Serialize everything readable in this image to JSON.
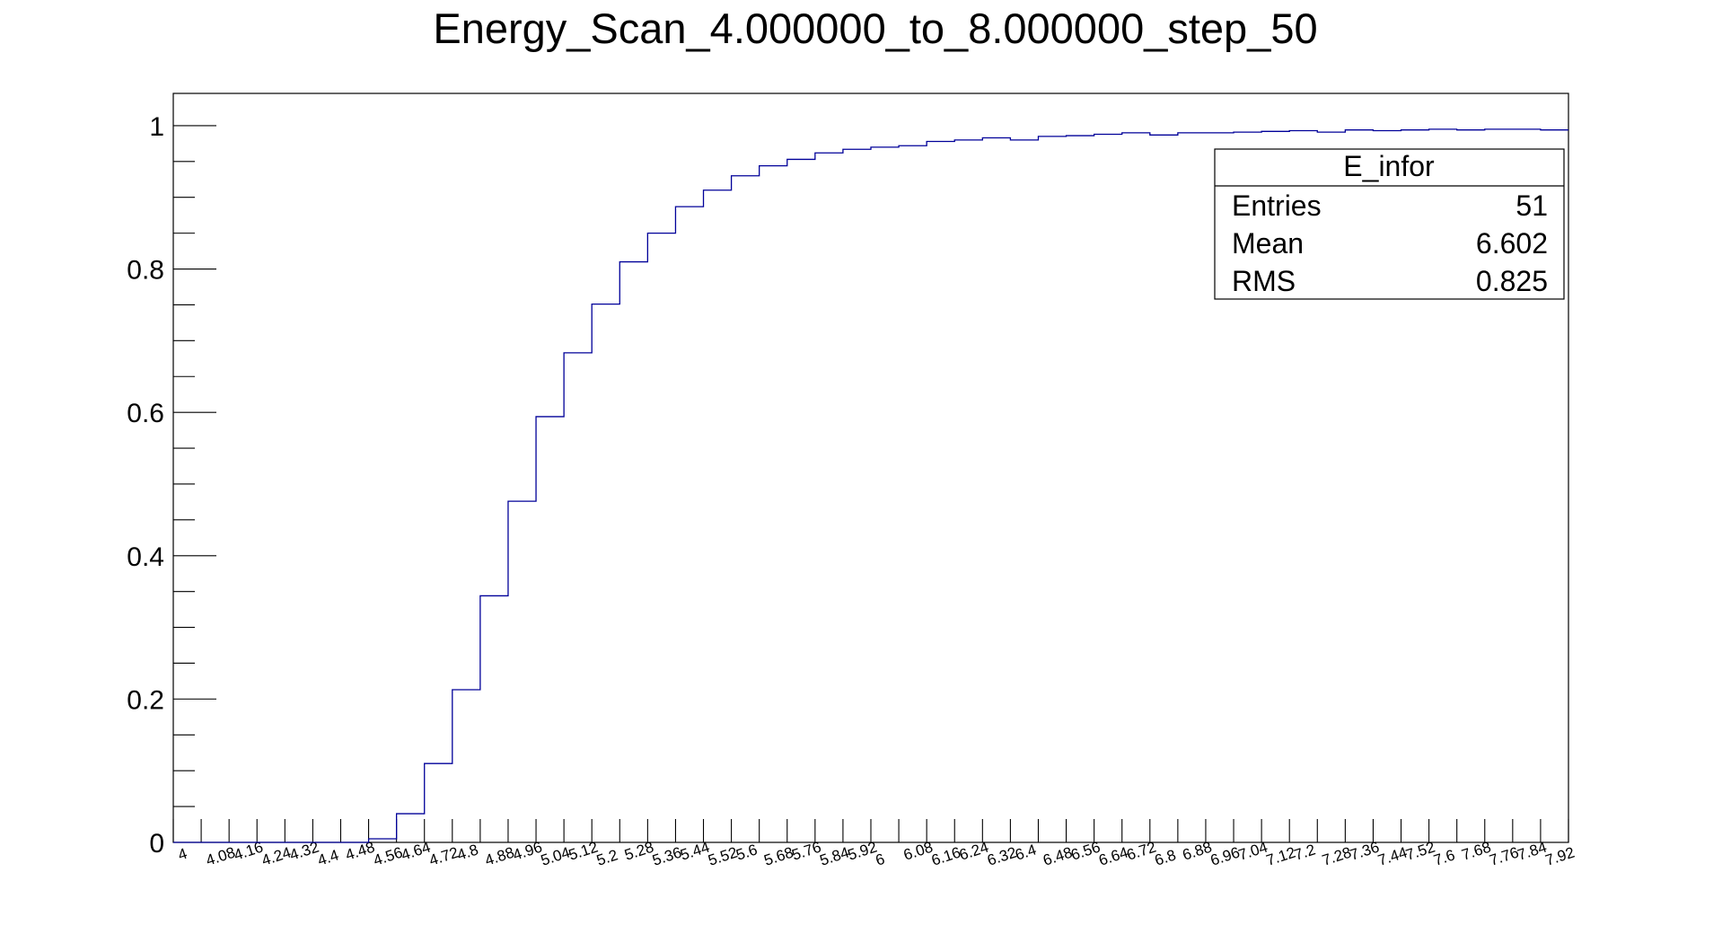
{
  "chart_data": {
    "type": "histogram",
    "title": "Energy_Scan_4.000000_to_8.000000_step_50",
    "xlabel": "",
    "ylabel": "",
    "xlim": [
      4,
      8
    ],
    "ylim": [
      0,
      1.045
    ],
    "line_color": "#000099",
    "grid": false,
    "bin_labels": [
      "4",
      "4.08",
      "4.16",
      "4.24",
      "4.32",
      "4.4",
      "4.48",
      "4.56",
      "4.64",
      "4.72",
      "4.8",
      "4.88",
      "4.96",
      "5.04",
      "5.12",
      "5.2",
      "5.28",
      "5.36",
      "5.44",
      "5.52",
      "5.6",
      "5.68",
      "5.76",
      "5.84",
      "5.92",
      "6",
      "6.08",
      "6.16",
      "6.24",
      "6.32",
      "6.4",
      "6.48",
      "6.56",
      "6.64",
      "6.72",
      "6.8",
      "6.88",
      "6.96",
      "7.04",
      "7.12",
      "7.2",
      "7.28",
      "7.36",
      "7.44",
      "7.52",
      "7.6",
      "7.68",
      "7.76",
      "7.84",
      "7.92"
    ],
    "y_ticks": [
      0,
      0.2,
      0.4,
      0.6,
      0.8,
      1
    ],
    "values": [
      0,
      0,
      0,
      0,
      0,
      0,
      0,
      0.005,
      0.04,
      0.11,
      0.213,
      0.344,
      0.476,
      0.594,
      0.683,
      0.751,
      0.81,
      0.85,
      0.887,
      0.91,
      0.93,
      0.944,
      0.953,
      0.962,
      0.967,
      0.97,
      0.972,
      0.978,
      0.98,
      0.983,
      0.98,
      0.985,
      0.986,
      0.988,
      0.99,
      0.987,
      0.99,
      0.99,
      0.991,
      0.992,
      0.993,
      0.991,
      0.994,
      0.993,
      0.994,
      0.995,
      0.994,
      0.995,
      0.995,
      0.994
    ],
    "stats_box": {
      "name": "E_infor",
      "rows": [
        {
          "label": "Entries",
          "value": "51"
        },
        {
          "label": "Mean",
          "value": "6.602"
        },
        {
          "label": "RMS",
          "value": "0.825"
        }
      ]
    }
  }
}
